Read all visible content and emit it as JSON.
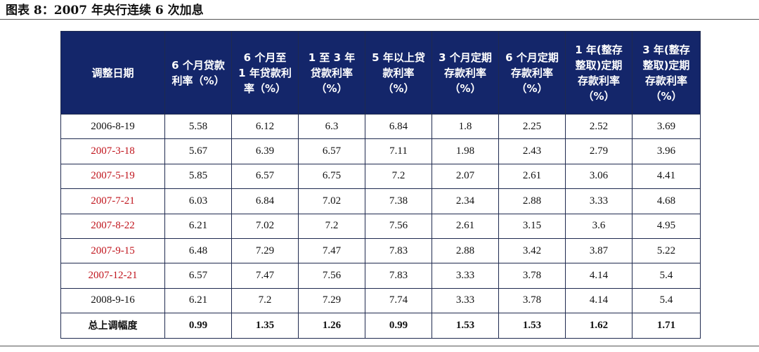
{
  "caption": "图表 8：2007 年央行连续 6 次加息",
  "table": {
    "headers": [
      "调整日期",
      "6 个月贷款利率（%）",
      "6 个月至 1 年贷款利率（%）",
      "1 至 3 年贷款利率（%）",
      "5 年以上贷款利率（%）",
      "3 个月定期存款利率（%）",
      "6 个月定期存款利率（%）",
      "1 年(整存整取)定期存款利率（%）",
      "3 年(整存整取)定期存款利率（%）"
    ],
    "rows": [
      {
        "date": "2006-8-19",
        "highlight": false,
        "values": [
          "5.58",
          "6.12",
          "6.3",
          "6.84",
          "1.8",
          "2.25",
          "2.52",
          "3.69"
        ]
      },
      {
        "date": "2007-3-18",
        "highlight": true,
        "values": [
          "5.67",
          "6.39",
          "6.57",
          "7.11",
          "1.98",
          "2.43",
          "2.79",
          "3.96"
        ]
      },
      {
        "date": "2007-5-19",
        "highlight": true,
        "values": [
          "5.85",
          "6.57",
          "6.75",
          "7.2",
          "2.07",
          "2.61",
          "3.06",
          "4.41"
        ]
      },
      {
        "date": "2007-7-21",
        "highlight": true,
        "values": [
          "6.03",
          "6.84",
          "7.02",
          "7.38",
          "2.34",
          "2.88",
          "3.33",
          "4.68"
        ]
      },
      {
        "date": "2007-8-22",
        "highlight": true,
        "values": [
          "6.21",
          "7.02",
          "7.2",
          "7.56",
          "2.61",
          "3.15",
          "3.6",
          "4.95"
        ]
      },
      {
        "date": "2007-9-15",
        "highlight": true,
        "values": [
          "6.48",
          "7.29",
          "7.47",
          "7.83",
          "2.88",
          "3.42",
          "3.87",
          "5.22"
        ]
      },
      {
        "date": "2007-12-21",
        "highlight": true,
        "values": [
          "6.57",
          "7.47",
          "7.56",
          "7.83",
          "3.33",
          "3.78",
          "4.14",
          "5.4"
        ]
      },
      {
        "date": "2008-9-16",
        "highlight": false,
        "values": [
          "6.21",
          "7.2",
          "7.29",
          "7.74",
          "3.33",
          "3.78",
          "4.14",
          "5.4"
        ]
      }
    ],
    "summary": {
      "label": "总上调幅度",
      "values": [
        "0.99",
        "1.35",
        "1.26",
        "0.99",
        "1.53",
        "1.53",
        "1.62",
        "1.71"
      ]
    }
  },
  "colors": {
    "header_bg": "#14266a",
    "header_text": "#ffffff",
    "highlight_date": "#c0141c"
  }
}
